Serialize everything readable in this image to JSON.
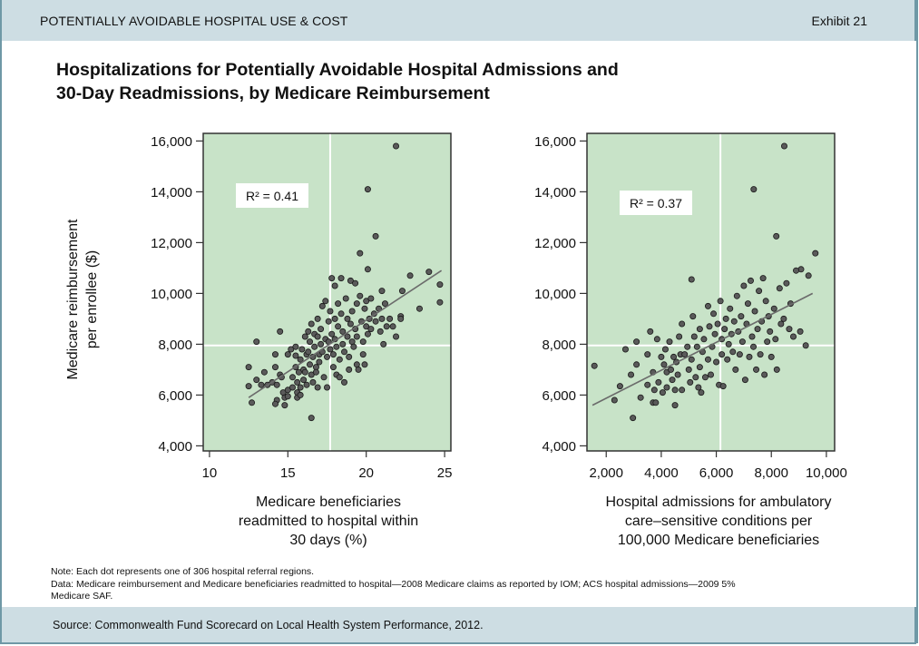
{
  "header": {
    "section": "POTENTIALLY AVOIDABLE HOSPITAL USE & COST",
    "exhibit": "Exhibit 21"
  },
  "title_line1": "Hospitalizations for Potentially Avoidable Hospital Admissions and",
  "title_line2": "30-Day Readmissions, by Medicare Reimbursement",
  "notes": {
    "line1": "Note: Each dot represents one of 306 hospital referral regions.",
    "line2": "Data: Medicare reimbursement and Medicare beneficiaries readmitted to hospital—2008 Medicare claims as reported by IOM; ACS hospital admissions—2009 5%",
    "line3": "Medicare SAF."
  },
  "footer": {
    "source": "Source: Commonwealth Fund Scorecard on Local Health System Performance, 2012."
  },
  "colors": {
    "plot_bg": "#c8e3c8",
    "dot_fill": "#5a5a5a",
    "dot_stroke": "#1a1a1a",
    "trend": "#6b6b6b",
    "ref_line": "#ffffff",
    "header_bg": "#cddde3",
    "border": "#6f98a6"
  },
  "chart_data": [
    {
      "type": "scatter",
      "title": "",
      "xlabel_lines": [
        "Medicare beneficiaries",
        "readmitted to hospital within",
        "30 days (%)"
      ],
      "ylabel_lines": [
        "Medicare reimbursement",
        "per enrollee ($)"
      ],
      "xlim": [
        9.6,
        25.4
      ],
      "ylim": [
        3800,
        16300
      ],
      "xticks": [
        10,
        15,
        20,
        25
      ],
      "xtick_labels": [
        "10",
        "15",
        "20",
        "25"
      ],
      "yticks": [
        4000,
        6000,
        8000,
        10000,
        12000,
        14000,
        16000
      ],
      "ytick_labels": [
        "4,000",
        "6,000",
        "8,000",
        "10,000",
        "12,000",
        "14,000",
        "16,000"
      ],
      "reference_lines": {
        "x": 17.7,
        "y": 7950
      },
      "trendline": {
        "x": [
          12.5,
          24.8
        ],
        "y": [
          5900,
          10900
        ]
      },
      "annotation": {
        "text": "R² = 0.41",
        "r2": 0.41,
        "position": "top-left"
      },
      "points": [
        [
          21.9,
          15800
        ],
        [
          20.1,
          14100
        ],
        [
          20.6,
          12250
        ],
        [
          19.6,
          11580
        ],
        [
          20.1,
          10950
        ],
        [
          24.0,
          10850
        ],
        [
          22.8,
          10700
        ],
        [
          24.7,
          10350
        ],
        [
          24.7,
          9650
        ],
        [
          23.4,
          9400
        ],
        [
          22.2,
          9100
        ],
        [
          12.5,
          7100
        ],
        [
          12.5,
          6350
        ],
        [
          12.7,
          5700
        ],
        [
          13.0,
          8100
        ],
        [
          13.0,
          6600
        ],
        [
          13.3,
          6400
        ],
        [
          13.5,
          6900
        ],
        [
          13.7,
          6400
        ],
        [
          14.0,
          6500
        ],
        [
          14.2,
          7600
        ],
        [
          14.2,
          7100
        ],
        [
          14.3,
          6400
        ],
        [
          14.5,
          8500
        ],
        [
          14.3,
          5800
        ],
        [
          14.2,
          5650
        ],
        [
          14.5,
          6800
        ],
        [
          14.6,
          6700
        ],
        [
          14.7,
          6100
        ],
        [
          14.8,
          5600
        ],
        [
          14.8,
          5900
        ],
        [
          15.0,
          7600
        ],
        [
          15.0,
          6200
        ],
        [
          15.0,
          5950
        ],
        [
          15.2,
          7800
        ],
        [
          15.3,
          6700
        ],
        [
          15.3,
          6300
        ],
        [
          15.5,
          7900
        ],
        [
          15.5,
          7550
        ],
        [
          15.5,
          7100
        ],
        [
          15.6,
          6500
        ],
        [
          15.6,
          6100
        ],
        [
          15.6,
          5900
        ],
        [
          15.7,
          6900
        ],
        [
          15.8,
          7400
        ],
        [
          15.8,
          6300
        ],
        [
          15.8,
          6000
        ],
        [
          15.9,
          7800
        ],
        [
          16.0,
          7000
        ],
        [
          16.0,
          6600
        ],
        [
          16.1,
          8300
        ],
        [
          16.1,
          6900
        ],
        [
          16.2,
          7600
        ],
        [
          16.2,
          6400
        ],
        [
          16.3,
          8500
        ],
        [
          16.3,
          7700
        ],
        [
          16.4,
          8100
        ],
        [
          16.4,
          7200
        ],
        [
          16.5,
          8800
        ],
        [
          16.5,
          6800
        ],
        [
          16.5,
          5100
        ],
        [
          16.6,
          7500
        ],
        [
          16.6,
          6500
        ],
        [
          16.7,
          8400
        ],
        [
          16.7,
          7900
        ],
        [
          16.8,
          7100
        ],
        [
          16.8,
          6900
        ],
        [
          16.9,
          9000
        ],
        [
          16.9,
          8300
        ],
        [
          16.9,
          6300
        ],
        [
          17.0,
          7600
        ],
        [
          17.0,
          7300
        ],
        [
          17.1,
          8600
        ],
        [
          17.1,
          8000
        ],
        [
          17.2,
          9500
        ],
        [
          17.2,
          7700
        ],
        [
          17.3,
          6700
        ],
        [
          17.4,
          9700
        ],
        [
          17.4,
          8200
        ],
        [
          17.5,
          7500
        ],
        [
          17.5,
          6300
        ],
        [
          17.6,
          8900
        ],
        [
          17.6,
          8100
        ],
        [
          17.7,
          9300
        ],
        [
          17.7,
          7800
        ],
        [
          17.8,
          10600
        ],
        [
          17.8,
          8400
        ],
        [
          17.9,
          7600
        ],
        [
          17.9,
          7100
        ],
        [
          18.0,
          10300
        ],
        [
          18.0,
          9000
        ],
        [
          18.0,
          8200
        ],
        [
          18.1,
          7900
        ],
        [
          18.1,
          6800
        ],
        [
          18.2,
          9600
        ],
        [
          18.2,
          8700
        ],
        [
          18.3,
          7400
        ],
        [
          18.3,
          6700
        ],
        [
          18.4,
          10600
        ],
        [
          18.4,
          9200
        ],
        [
          18.5,
          8500
        ],
        [
          18.5,
          8000
        ],
        [
          18.6,
          7700
        ],
        [
          18.6,
          6500
        ],
        [
          18.7,
          9800
        ],
        [
          18.8,
          9000
        ],
        [
          18.8,
          8300
        ],
        [
          18.9,
          7500
        ],
        [
          18.9,
          7000
        ],
        [
          19.0,
          10500
        ],
        [
          19.0,
          8800
        ],
        [
          19.1,
          9300
        ],
        [
          19.1,
          8100
        ],
        [
          19.2,
          7900
        ],
        [
          19.3,
          10400
        ],
        [
          19.3,
          8600
        ],
        [
          19.4,
          9600
        ],
        [
          19.4,
          8300
        ],
        [
          19.4,
          7200
        ],
        [
          19.5,
          7000
        ],
        [
          19.6,
          9900
        ],
        [
          19.7,
          8900
        ],
        [
          19.8,
          8100
        ],
        [
          19.8,
          7600
        ],
        [
          19.9,
          9400
        ],
        [
          19.9,
          7200
        ],
        [
          20.0,
          9700
        ],
        [
          20.0,
          8700
        ],
        [
          20.1,
          8400
        ],
        [
          20.2,
          9000
        ],
        [
          20.3,
          9800
        ],
        [
          20.3,
          8600
        ],
        [
          20.5,
          9200
        ],
        [
          20.6,
          8900
        ],
        [
          20.8,
          9400
        ],
        [
          20.9,
          8500
        ],
        [
          21.0,
          10100
        ],
        [
          21.0,
          9000
        ],
        [
          21.1,
          8000
        ],
        [
          21.2,
          9600
        ],
        [
          21.3,
          8700
        ],
        [
          21.5,
          9000
        ],
        [
          21.7,
          8700
        ],
        [
          21.9,
          8300
        ],
        [
          22.2,
          9000
        ],
        [
          22.3,
          10100
        ]
      ]
    },
    {
      "type": "scatter",
      "title": "",
      "xlabel_lines": [
        "Hospital admissions for ambulatory",
        "care–sensitive conditions per",
        "100,000 Medicare beneficiaries"
      ],
      "xlim": [
        1300,
        10300
      ],
      "ylim": [
        3800,
        16300
      ],
      "xticks": [
        2000,
        4000,
        6000,
        8000,
        10000
      ],
      "xtick_labels": [
        "2,000",
        "4,000",
        "6,000",
        "8,000",
        "10,000"
      ],
      "yticks": [
        4000,
        6000,
        8000,
        10000,
        12000,
        14000,
        16000
      ],
      "ytick_labels": [
        "4,000",
        "6,000",
        "8,000",
        "10,000",
        "12,000",
        "14,000",
        "16,000"
      ],
      "reference_lines": {
        "x": 6150,
        "y": 7950
      },
      "trendline": {
        "x": [
          1500,
          9500
        ],
        "y": [
          5600,
          10000
        ]
      },
      "annotation": {
        "text": "R² = 0.37",
        "r2": 0.37,
        "position": "top-left"
      },
      "points": [
        [
          8470,
          15800
        ],
        [
          7360,
          14100
        ],
        [
          8180,
          12250
        ],
        [
          9600,
          11580
        ],
        [
          9080,
          10950
        ],
        [
          5100,
          10550
        ],
        [
          9350,
          10700
        ],
        [
          1570,
          7150
        ],
        [
          2970,
          5100
        ],
        [
          2300,
          5800
        ],
        [
          2500,
          6350
        ],
        [
          2700,
          7800
        ],
        [
          2900,
          6800
        ],
        [
          3100,
          8100
        ],
        [
          3100,
          7200
        ],
        [
          3250,
          5900
        ],
        [
          3500,
          7600
        ],
        [
          3500,
          6400
        ],
        [
          3600,
          8500
        ],
        [
          3700,
          6900
        ],
        [
          3750,
          6200
        ],
        [
          3700,
          5700
        ],
        [
          3850,
          8200
        ],
        [
          3800,
          5700
        ],
        [
          3900,
          6500
        ],
        [
          4000,
          7500
        ],
        [
          4050,
          6100
        ],
        [
          4100,
          7200
        ],
        [
          4150,
          7800
        ],
        [
          4200,
          6900
        ],
        [
          4200,
          6300
        ],
        [
          4300,
          8100
        ],
        [
          4350,
          7000
        ],
        [
          4400,
          6600
        ],
        [
          4450,
          7500
        ],
        [
          4500,
          5600
        ],
        [
          4500,
          6200
        ],
        [
          4550,
          7300
        ],
        [
          4600,
          6800
        ],
        [
          4650,
          8300
        ],
        [
          4700,
          7600
        ],
        [
          4750,
          6200
        ],
        [
          4750,
          8800
        ],
        [
          4850,
          7600
        ],
        [
          4950,
          7900
        ],
        [
          5000,
          7000
        ],
        [
          5050,
          6500
        ],
        [
          5100,
          7400
        ],
        [
          5150,
          9100
        ],
        [
          5200,
          8300
        ],
        [
          5250,
          6700
        ],
        [
          5300,
          7900
        ],
        [
          5350,
          6300
        ],
        [
          5400,
          8600
        ],
        [
          5400,
          7100
        ],
        [
          5450,
          6100
        ],
        [
          5500,
          7700
        ],
        [
          5550,
          8200
        ],
        [
          5600,
          6700
        ],
        [
          5700,
          9500
        ],
        [
          5700,
          7400
        ],
        [
          5750,
          8700
        ],
        [
          5800,
          6800
        ],
        [
          5850,
          7900
        ],
        [
          5900,
          9200
        ],
        [
          5950,
          8400
        ],
        [
          6000,
          7300
        ],
        [
          6050,
          8800
        ],
        [
          6100,
          6400
        ],
        [
          6150,
          9700
        ],
        [
          6200,
          8200
        ],
        [
          6200,
          7600
        ],
        [
          6250,
          6350
        ],
        [
          6300,
          8600
        ],
        [
          6350,
          9000
        ],
        [
          6400,
          7400
        ],
        [
          6450,
          8000
        ],
        [
          6500,
          9400
        ],
        [
          6550,
          8400
        ],
        [
          6600,
          7700
        ],
        [
          6650,
          8900
        ],
        [
          6700,
          7000
        ],
        [
          6750,
          9900
        ],
        [
          6800,
          8500
        ],
        [
          6850,
          7600
        ],
        [
          6900,
          9100
        ],
        [
          6950,
          8100
        ],
        [
          7000,
          10300
        ],
        [
          7050,
          6600
        ],
        [
          7100,
          8800
        ],
        [
          7150,
          9600
        ],
        [
          7200,
          7500
        ],
        [
          7250,
          10500
        ],
        [
          7300,
          8300
        ],
        [
          7350,
          7900
        ],
        [
          7400,
          9300
        ],
        [
          7450,
          7000
        ],
        [
          7500,
          8600
        ],
        [
          7550,
          10100
        ],
        [
          7600,
          7600
        ],
        [
          7650,
          8900
        ],
        [
          7700,
          10600
        ],
        [
          7750,
          6800
        ],
        [
          7800,
          9700
        ],
        [
          7850,
          8100
        ],
        [
          7900,
          9100
        ],
        [
          7950,
          8500
        ],
        [
          8000,
          7500
        ],
        [
          8100,
          9400
        ],
        [
          8150,
          8200
        ],
        [
          8200,
          7000
        ],
        [
          8300,
          10200
        ],
        [
          8350,
          8800
        ],
        [
          8450,
          9000
        ],
        [
          8550,
          10400
        ],
        [
          8650,
          8600
        ],
        [
          8700,
          9600
        ],
        [
          8800,
          8300
        ],
        [
          8900,
          10900
        ],
        [
          9050,
          8500
        ],
        [
          9250,
          7950
        ]
      ]
    }
  ]
}
